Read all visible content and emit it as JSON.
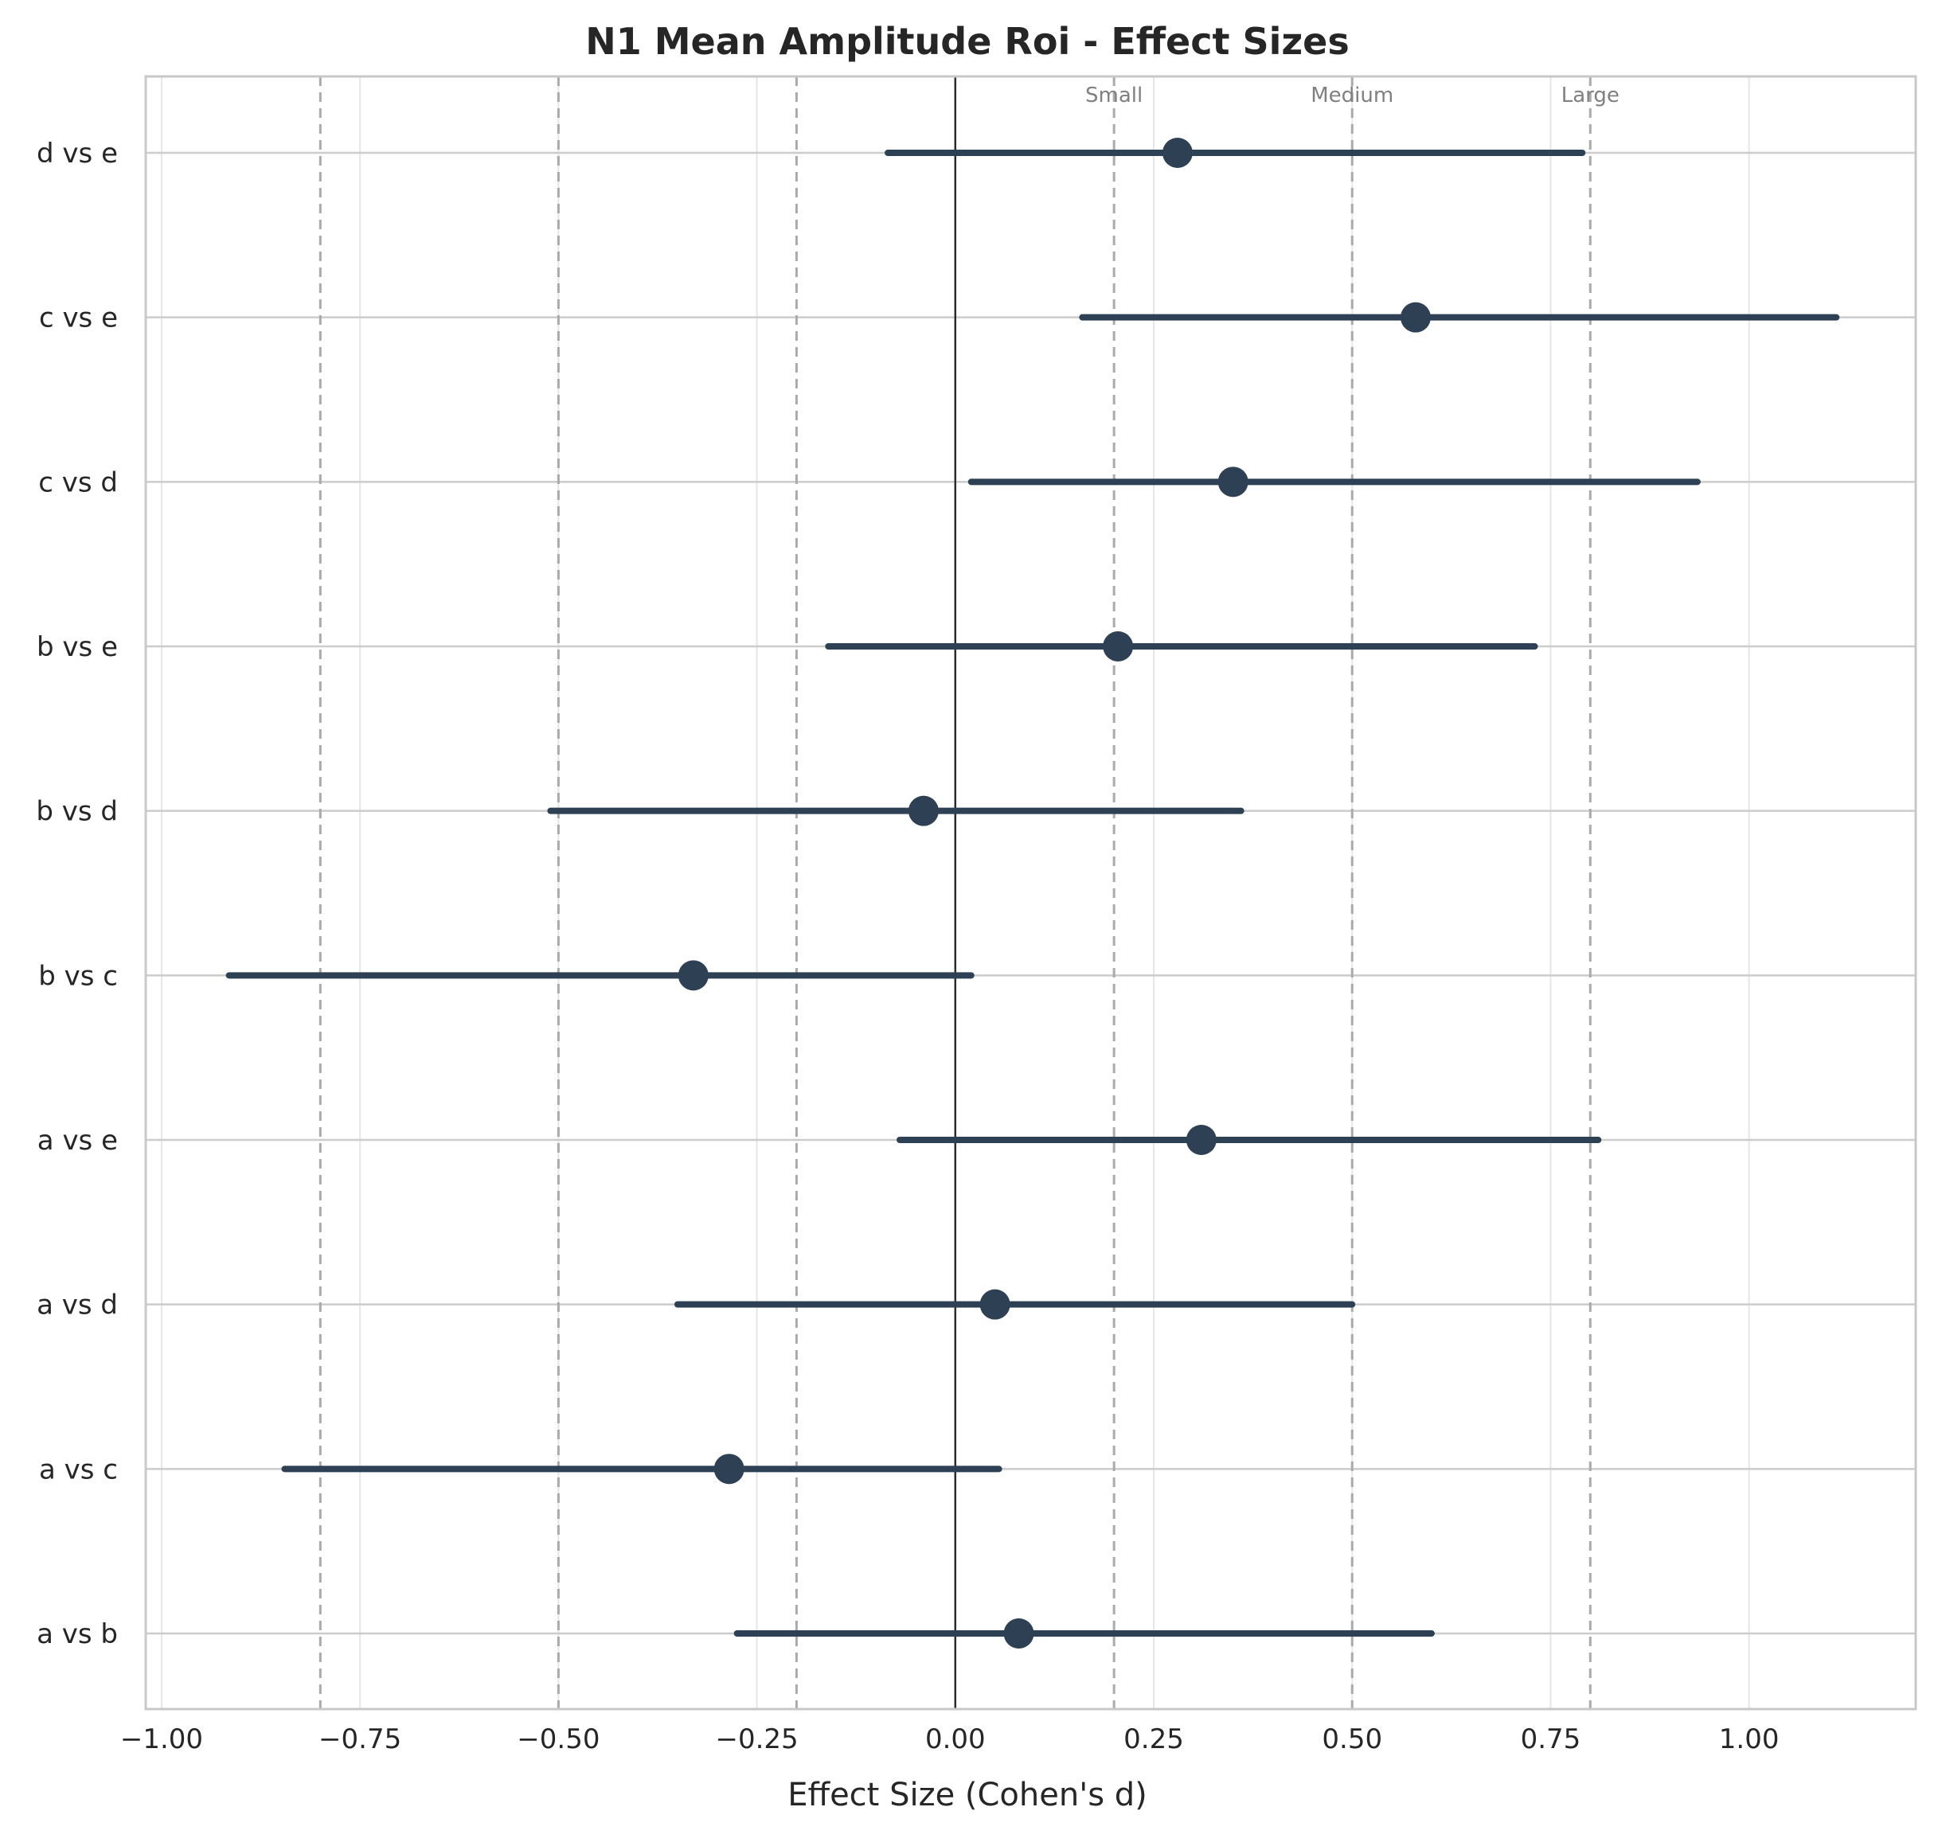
{
  "chart_data": {
    "type": "forest",
    "title": "N1 Mean Amplitude Roi - Effect Sizes",
    "xlabel": "Effect Size (Cohen's d)",
    "ylabel": "",
    "xlim": [
      -1.02,
      1.21
    ],
    "xticks": [
      -1.0,
      -0.75,
      -0.5,
      -0.25,
      0.0,
      0.25,
      0.5,
      0.75,
      1.0
    ],
    "xtick_labels": [
      "−1.00",
      "−0.75",
      "−0.50",
      "−0.25",
      "0.00",
      "0.25",
      "0.50",
      "0.75",
      "1.00"
    ],
    "grid": true,
    "reference_line": 0,
    "thresholds": [
      {
        "label": "Small",
        "value": 0.2
      },
      {
        "label": "Medium",
        "value": 0.5
      },
      {
        "label": "Large",
        "value": 0.8
      }
    ],
    "negative_thresholds": [
      -0.2,
      -0.5,
      -0.8
    ],
    "categories": [
      "d vs e",
      "c vs e",
      "c vs d",
      "b vs e",
      "b vs d",
      "b vs c",
      "a vs e",
      "a vs d",
      "a vs c",
      "a vs b"
    ],
    "estimates": [
      0.28,
      0.58,
      0.35,
      0.205,
      -0.04,
      -0.33,
      0.31,
      0.05,
      -0.285,
      0.08
    ],
    "ci_low": [
      -0.085,
      0.16,
      0.02,
      -0.16,
      -0.51,
      -0.915,
      -0.07,
      -0.35,
      -0.845,
      -0.275
    ],
    "ci_high": [
      0.79,
      1.11,
      0.935,
      0.73,
      0.36,
      0.02,
      0.81,
      0.5,
      0.055,
      0.6
    ],
    "color": "#2e4053"
  }
}
